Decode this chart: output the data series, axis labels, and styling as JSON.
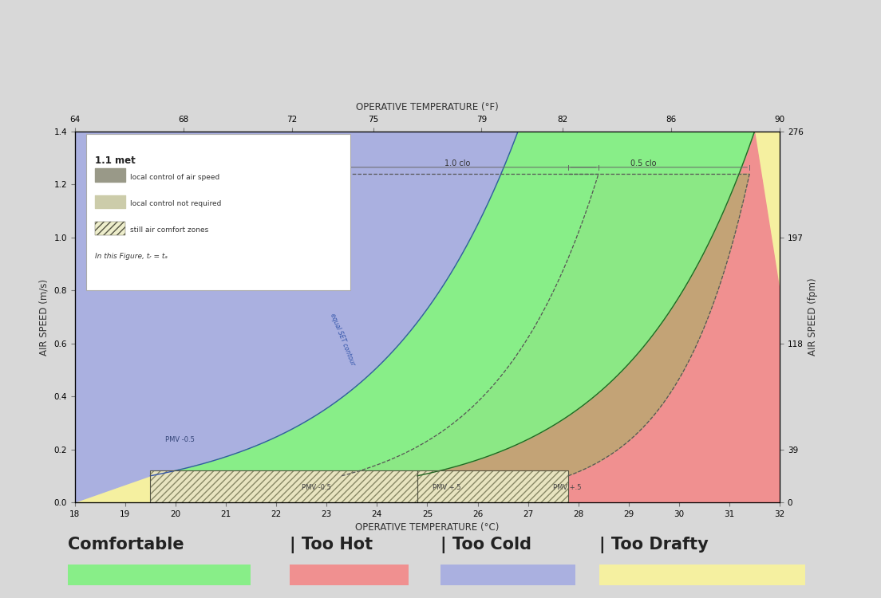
{
  "title_top": "OPERATIVE TEMPERATURE (°F)",
  "xlabel": "OPERATIVE TEMPERATURE (°C)",
  "ylabel_left": "AIR SPEED (m/s)",
  "ylabel_right": "AIR SPEED (fpm)",
  "xlim_C": [
    18,
    32
  ],
  "ylim_ms": [
    0,
    1.4
  ],
  "xticks_C": [
    18,
    19,
    20,
    21,
    22,
    23,
    24,
    25,
    26,
    27,
    28,
    29,
    30,
    31,
    32
  ],
  "yticks_ms": [
    0,
    0.2,
    0.4,
    0.6,
    0.8,
    1.0,
    1.2,
    1.4
  ],
  "xticks_F": [
    64,
    68,
    72,
    75,
    79,
    82,
    86,
    90
  ],
  "yticks_fpm": [
    0,
    39,
    118,
    197,
    276
  ],
  "color_yellow": "#f5f0a0",
  "color_blue": "#aab0e0",
  "color_green": "#88ee88",
  "color_red": "#f09090",
  "color_olive": "#b8a870",
  "color_bg": "#d8d8d8",
  "color_plot_bg": "#f5f5f5",
  "label_comfortable": "Comfortable",
  "label_toohot": "Too Hot",
  "label_toocold": "Too Cold",
  "label_toodrafty": "Too Drafty",
  "clo_labels": [
    "1.0 clo",
    "0.5 clo"
  ]
}
